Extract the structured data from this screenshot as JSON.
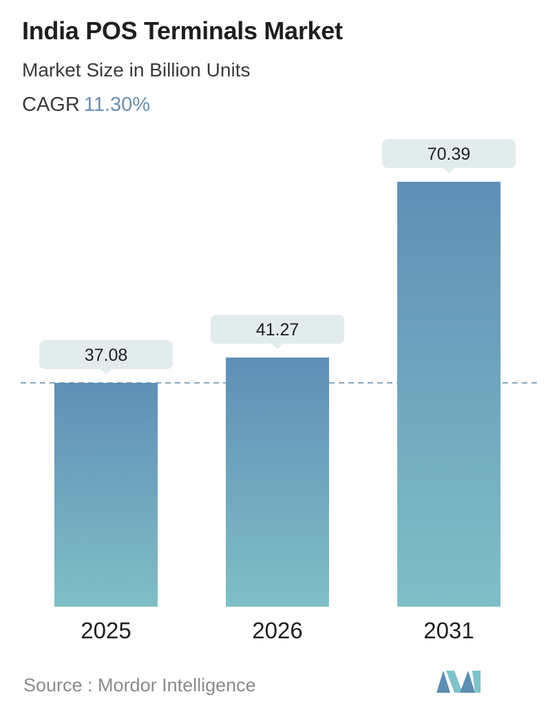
{
  "header": {
    "title": "India POS Terminals Market",
    "subtitle": "Market Size in Billion Units",
    "cagr_label": "CAGR",
    "cagr_value": "11.30%"
  },
  "chart_data": {
    "type": "bar",
    "categories": [
      "2025",
      "2026",
      "2031"
    ],
    "values": [
      37.08,
      41.27,
      70.39
    ],
    "value_labels": [
      "37.08",
      "41.27",
      "70.39"
    ],
    "reference_line": "dashed line at first bar value",
    "colors": {
      "bar_top": "#5f8fb6",
      "bar_bottom": "#7fbfc6",
      "label_bg": "#e2eced",
      "dashed_line": "#5e88a8",
      "text": "#1f1f1f"
    }
  },
  "footer": {
    "source_text": "Source :  Mordor Intelligence",
    "logo_colors": [
      "#5d8fb3",
      "#7ec3c9"
    ]
  }
}
